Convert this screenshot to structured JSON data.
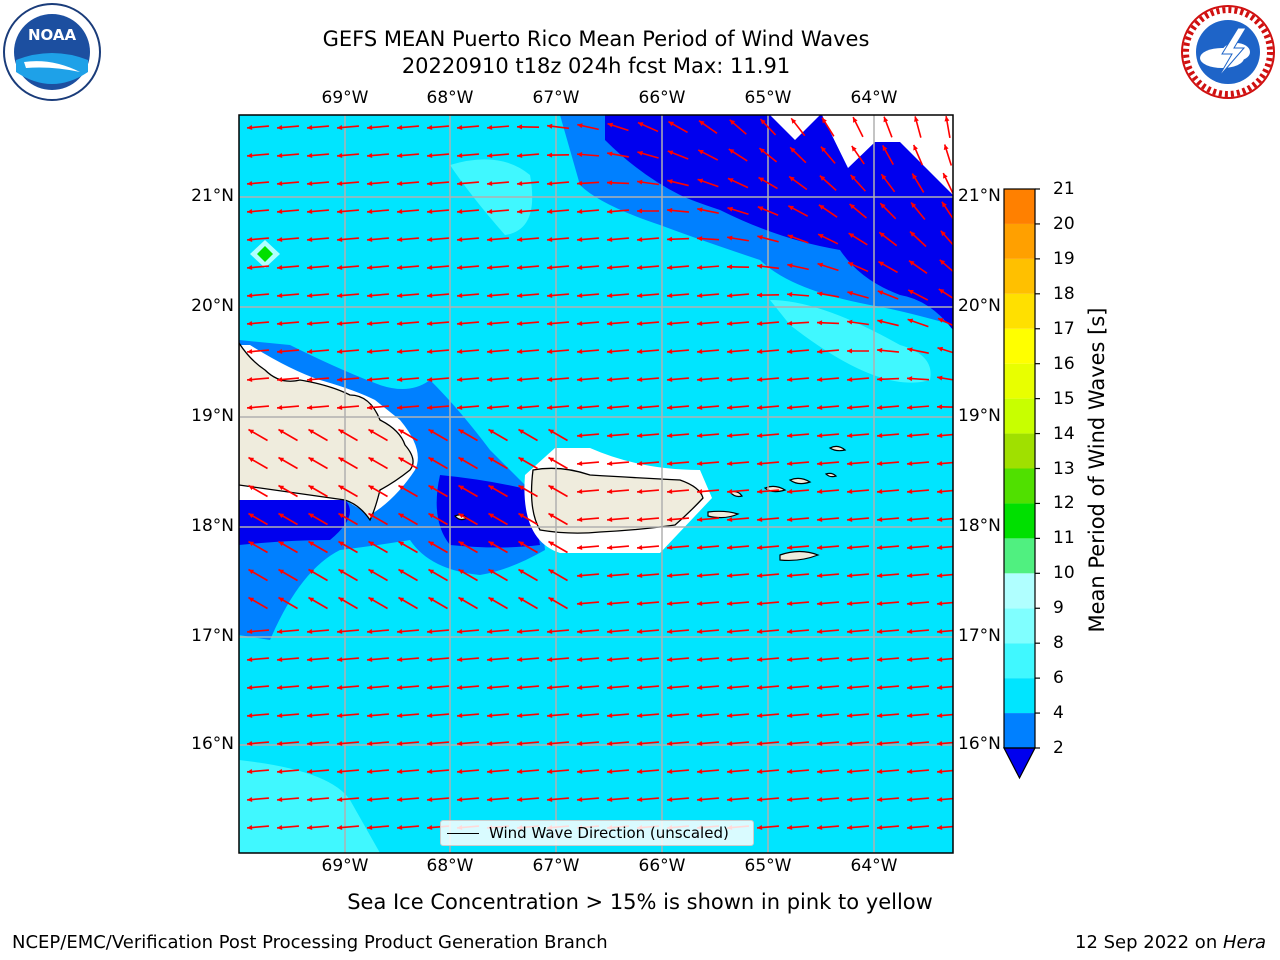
{
  "header": {
    "title_line1": "GEFS MEAN Puerto Rico Mean Period of Wind Waves",
    "title_line2": "20220910 t18z 024h fcst   Max: 11.91"
  },
  "map": {
    "lon_labels": [
      "69°W",
      "68°W",
      "67°W",
      "66°W",
      "65°W",
      "64°W"
    ],
    "lat_labels": [
      "21°N",
      "20°N",
      "19°N",
      "18°N",
      "17°N",
      "16°N"
    ],
    "land_color": "#efecdd",
    "arrow_color": "#ff0000"
  },
  "legend": {
    "label": "Wind Wave Direction (unscaled)"
  },
  "colorbar": {
    "label": "Mean Period of Wind Waves [s]",
    "ticks": [
      "21",
      "20",
      "19",
      "18",
      "17",
      "16",
      "15",
      "14",
      "13",
      "12",
      "11",
      "10",
      "9",
      "8",
      "6",
      "4",
      "2"
    ],
    "colors": [
      "#0000ee",
      "#0080ff",
      "#00e5ff",
      "#40f8ff",
      "#80ffff",
      "#b0ffff",
      "#50f080",
      "#00e000",
      "#50e000",
      "#a0e000",
      "#c8ff00",
      "#e8ff00",
      "#ffff00",
      "#ffe000",
      "#ffc000",
      "#ffa000",
      "#ff8000",
      "#ff6000",
      "#ff4000",
      "#ff2000",
      "#ff0000"
    ]
  },
  "notes": {
    "sea_ice": "Sea Ice Concentration > 15% is shown in pink to yellow"
  },
  "footer": {
    "left": "NCEP/EMC/Verification Post Processing Product Generation Branch",
    "right_prefix": "12 Sep 2022 on ",
    "right_host": "Hera"
  },
  "logos": {
    "noaa_text": "NOAA",
    "nws_text": "NATIONAL WEATHER SERVICE"
  }
}
